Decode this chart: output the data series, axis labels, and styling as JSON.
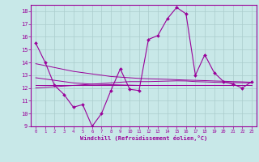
{
  "x": [
    0,
    1,
    2,
    3,
    4,
    5,
    6,
    7,
    8,
    9,
    10,
    11,
    12,
    13,
    14,
    15,
    16,
    17,
    18,
    19,
    20,
    21,
    22,
    23
  ],
  "y_main": [
    15.5,
    14.0,
    12.2,
    11.5,
    10.5,
    10.7,
    9.0,
    10.0,
    11.8,
    13.5,
    11.9,
    11.8,
    15.8,
    16.1,
    17.4,
    18.3,
    17.8,
    13.0,
    14.6,
    13.2,
    12.5,
    12.3,
    12.0,
    12.5
  ],
  "y_trend1": [
    12.2,
    12.2,
    12.2,
    12.2,
    12.2,
    12.2,
    12.2,
    12.2,
    12.2,
    12.2,
    12.2,
    12.2,
    12.2,
    12.2,
    12.2,
    12.2,
    12.2,
    12.2,
    12.2,
    12.2,
    12.2,
    12.2,
    12.2,
    12.2
  ],
  "y_trend2": [
    12.0,
    12.05,
    12.1,
    12.15,
    12.2,
    12.25,
    12.3,
    12.35,
    12.4,
    12.45,
    12.5,
    12.5,
    12.5,
    12.52,
    12.54,
    12.56,
    12.55,
    12.5,
    12.48,
    12.45,
    12.43,
    12.42,
    12.41,
    12.4
  ],
  "y_trend3": [
    13.9,
    13.75,
    13.6,
    13.45,
    13.3,
    13.2,
    13.1,
    13.0,
    12.9,
    12.85,
    12.8,
    12.75,
    12.72,
    12.7,
    12.68,
    12.65,
    12.62,
    12.6,
    12.58,
    12.55,
    12.53,
    12.5,
    12.48,
    12.45
  ],
  "y_trend4": [
    12.8,
    12.7,
    12.6,
    12.5,
    12.4,
    12.35,
    12.3,
    12.28,
    12.26,
    12.24,
    12.22,
    12.2,
    12.2,
    12.2,
    12.2,
    12.2,
    12.2,
    12.2,
    12.2,
    12.2,
    12.2,
    12.2,
    12.2,
    12.2
  ],
  "line_color": "#990099",
  "bg_color": "#c8e8e8",
  "grid_color": "#aacccc",
  "xlabel": "Windchill (Refroidissement éolien,°C)",
  "xlim": [
    -0.5,
    23.5
  ],
  "ylim": [
    9,
    18.5
  ],
  "yticks": [
    9,
    10,
    11,
    12,
    13,
    14,
    15,
    16,
    17,
    18
  ],
  "xticks": [
    0,
    1,
    2,
    3,
    4,
    5,
    6,
    7,
    8,
    9,
    10,
    11,
    12,
    13,
    14,
    15,
    16,
    17,
    18,
    19,
    20,
    21,
    22,
    23
  ]
}
